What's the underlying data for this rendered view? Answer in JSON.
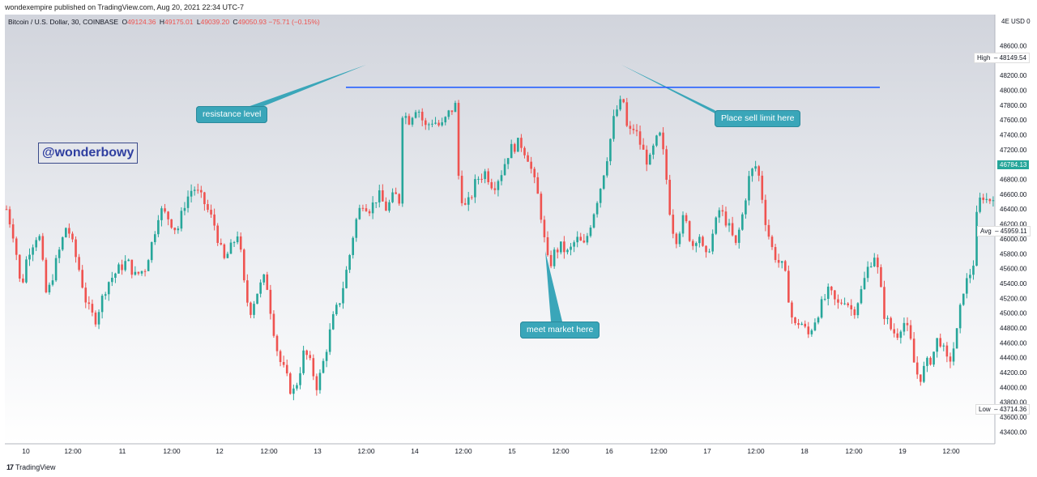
{
  "header": {
    "published_text": "wondexempire published on TradingView.com, Aug 20, 2021 22:34 UTC-7"
  },
  "legend": {
    "symbol": "Bitcoin / U.S. Dollar, 30, COINBASE",
    "open_label": "O",
    "open": "49124.36",
    "high_label": "H",
    "high": "49175.01",
    "low_label": "L",
    "low": "49039.20",
    "close_label": "C",
    "close": "49050.93",
    "change": "−75.71 (−0.15%)"
  },
  "annotations": {
    "resistance": "resistance level",
    "sell": "Place sell limit here",
    "meet": "meet market here",
    "watermark": "@wonderbowy"
  },
  "price_tags": {
    "currency": "USD",
    "top_clip": "4E",
    "top_clip2": "0",
    "high_label": "High",
    "high_value": "48149.54",
    "last_value": "46784.13",
    "avg_label": "Avg",
    "avg_value": "45959.11",
    "low_label": "Low",
    "low_value": "43714.36"
  },
  "footer": {
    "brand": "TradingView",
    "logo": "17"
  },
  "colors": {
    "up": "#26a69a",
    "down": "#ef5350",
    "line": "#2962ff",
    "callout": "#3aa6b9",
    "last_tag": "#26a69a"
  },
  "chart_data": {
    "type": "candlestick",
    "title": "Bitcoin / U.S. Dollar, 30, COINBASE",
    "ylim": [
      43240,
      49020
    ],
    "y_ticks": [
      43400,
      43600,
      43800,
      44000,
      44200,
      44400,
      44600,
      44800,
      45000,
      45200,
      45400,
      45600,
      45800,
      46000,
      46200,
      46400,
      46600,
      46800,
      47000,
      47200,
      47400,
      47600,
      47800,
      48000,
      48200,
      48400,
      48600
    ],
    "x_ticks": [
      "10",
      "12:00",
      "11",
      "12:00",
      "12",
      "12:00",
      "13",
      "12:00",
      "14",
      "12:00",
      "15",
      "12:00",
      "16",
      "12:00",
      "17",
      "12:00",
      "18",
      "12:00",
      "19",
      "12:00"
    ],
    "resistance_line": 48040,
    "close_path": [
      {
        "x": 0,
        "y": 46400
      },
      {
        "x": 10,
        "y": 46000
      },
      {
        "x": 18,
        "y": 45300
      },
      {
        "x": 26,
        "y": 45800
      },
      {
        "x": 40,
        "y": 46100
      },
      {
        "x": 50,
        "y": 45200
      },
      {
        "x": 62,
        "y": 45700
      },
      {
        "x": 75,
        "y": 46200
      },
      {
        "x": 90,
        "y": 45600
      },
      {
        "x": 100,
        "y": 45100
      },
      {
        "x": 110,
        "y": 44900
      },
      {
        "x": 125,
        "y": 45400
      },
      {
        "x": 140,
        "y": 45600
      },
      {
        "x": 150,
        "y": 45700
      },
      {
        "x": 160,
        "y": 45500
      },
      {
        "x": 172,
        "y": 45600
      },
      {
        "x": 182,
        "y": 46000
      },
      {
        "x": 190,
        "y": 46400
      },
      {
        "x": 200,
        "y": 46300
      },
      {
        "x": 212,
        "y": 46100
      },
      {
        "x": 222,
        "y": 46500
      },
      {
        "x": 232,
        "y": 46700
      },
      {
        "x": 245,
        "y": 46500
      },
      {
        "x": 258,
        "y": 46200
      },
      {
        "x": 270,
        "y": 45700
      },
      {
        "x": 280,
        "y": 45900
      },
      {
        "x": 288,
        "y": 46100
      },
      {
        "x": 295,
        "y": 45400
      },
      {
        "x": 302,
        "y": 45000
      },
      {
        "x": 312,
        "y": 45300
      },
      {
        "x": 322,
        "y": 45500
      },
      {
        "x": 330,
        "y": 44900
      },
      {
        "x": 338,
        "y": 44400
      },
      {
        "x": 346,
        "y": 44200
      },
      {
        "x": 355,
        "y": 43900
      },
      {
        "x": 362,
        "y": 44100
      },
      {
        "x": 370,
        "y": 44500
      },
      {
        "x": 378,
        "y": 44300
      },
      {
        "x": 386,
        "y": 44000
      },
      {
        "x": 395,
        "y": 44400
      },
      {
        "x": 405,
        "y": 44900
      },
      {
        "x": 415,
        "y": 45200
      },
      {
        "x": 425,
        "y": 45700
      },
      {
        "x": 433,
        "y": 46200
      },
      {
        "x": 442,
        "y": 46500
      },
      {
        "x": 452,
        "y": 46400
      },
      {
        "x": 462,
        "y": 46600
      },
      {
        "x": 472,
        "y": 46400
      },
      {
        "x": 482,
        "y": 46600
      },
      {
        "x": 489,
        "y": 46500
      },
      {
        "x": 492,
        "y": 47700
      },
      {
        "x": 500,
        "y": 47600
      },
      {
        "x": 510,
        "y": 47800
      },
      {
        "x": 520,
        "y": 47500
      },
      {
        "x": 530,
        "y": 47600
      },
      {
        "x": 540,
        "y": 47500
      },
      {
        "x": 550,
        "y": 47700
      },
      {
        "x": 558,
        "y": 47800
      },
      {
        "x": 561,
        "y": 46900
      },
      {
        "x": 568,
        "y": 46400
      },
      {
        "x": 575,
        "y": 46500
      },
      {
        "x": 584,
        "y": 46800
      },
      {
        "x": 595,
        "y": 46900
      },
      {
        "x": 605,
        "y": 46700
      },
      {
        "x": 615,
        "y": 46900
      },
      {
        "x": 625,
        "y": 47200
      },
      {
        "x": 638,
        "y": 47300
      },
      {
        "x": 648,
        "y": 47100
      },
      {
        "x": 655,
        "y": 46800
      },
      {
        "x": 662,
        "y": 46500
      },
      {
        "x": 668,
        "y": 46000
      },
      {
        "x": 674,
        "y": 45600
      },
      {
        "x": 680,
        "y": 45800
      },
      {
        "x": 688,
        "y": 45900
      },
      {
        "x": 698,
        "y": 45800
      },
      {
        "x": 708,
        "y": 46000
      },
      {
        "x": 718,
        "y": 45900
      },
      {
        "x": 728,
        "y": 46300
      },
      {
        "x": 738,
        "y": 46700
      },
      {
        "x": 748,
        "y": 47200
      },
      {
        "x": 756,
        "y": 47700
      },
      {
        "x": 762,
        "y": 47800
      },
      {
        "x": 766,
        "y": 47900
      },
      {
        "x": 772,
        "y": 47400
      },
      {
        "x": 780,
        "y": 47500
      },
      {
        "x": 790,
        "y": 47200
      },
      {
        "x": 798,
        "y": 47000
      },
      {
        "x": 806,
        "y": 47300
      },
      {
        "x": 813,
        "y": 47400
      },
      {
        "x": 820,
        "y": 46800
      },
      {
        "x": 826,
        "y": 46200
      },
      {
        "x": 832,
        "y": 46000
      },
      {
        "x": 842,
        "y": 46300
      },
      {
        "x": 852,
        "y": 45900
      },
      {
        "x": 860,
        "y": 46100
      },
      {
        "x": 868,
        "y": 45700
      },
      {
        "x": 876,
        "y": 46000
      },
      {
        "x": 886,
        "y": 46400
      },
      {
        "x": 896,
        "y": 46200
      },
      {
        "x": 906,
        "y": 45900
      },
      {
        "x": 914,
        "y": 46300
      },
      {
        "x": 922,
        "y": 46800
      },
      {
        "x": 930,
        "y": 47000
      },
      {
        "x": 936,
        "y": 46800
      },
      {
        "x": 942,
        "y": 46300
      },
      {
        "x": 950,
        "y": 45900
      },
      {
        "x": 958,
        "y": 45700
      },
      {
        "x": 966,
        "y": 45600
      },
      {
        "x": 972,
        "y": 45200
      },
      {
        "x": 978,
        "y": 44800
      },
      {
        "x": 986,
        "y": 44900
      },
      {
        "x": 996,
        "y": 44700
      },
      {
        "x": 1004,
        "y": 44900
      },
      {
        "x": 1012,
        "y": 45100
      },
      {
        "x": 1022,
        "y": 45300
      },
      {
        "x": 1032,
        "y": 45100
      },
      {
        "x": 1042,
        "y": 45200
      },
      {
        "x": 1052,
        "y": 45000
      },
      {
        "x": 1062,
        "y": 45300
      },
      {
        "x": 1070,
        "y": 45600
      },
      {
        "x": 1078,
        "y": 45800
      },
      {
        "x": 1084,
        "y": 45500
      },
      {
        "x": 1090,
        "y": 45000
      },
      {
        "x": 1098,
        "y": 44800
      },
      {
        "x": 1106,
        "y": 44700
      },
      {
        "x": 1114,
        "y": 44900
      },
      {
        "x": 1122,
        "y": 44700
      },
      {
        "x": 1128,
        "y": 44300
      },
      {
        "x": 1134,
        "y": 44100
      },
      {
        "x": 1142,
        "y": 44300
      },
      {
        "x": 1150,
        "y": 44400
      },
      {
        "x": 1158,
        "y": 44700
      },
      {
        "x": 1164,
        "y": 44500
      },
      {
        "x": 1170,
        "y": 44300
      },
      {
        "x": 1176,
        "y": 44500
      },
      {
        "x": 1182,
        "y": 44800
      },
      {
        "x": 1188,
        "y": 45300
      },
      {
        "x": 1196,
        "y": 45500
      },
      {
        "x": 1202,
        "y": 45700
      },
      {
        "x": 1206,
        "y": 46400
      },
      {
        "x": 1212,
        "y": 46600
      },
      {
        "x": 1220,
        "y": 46500
      },
      {
        "x": 1226,
        "y": 46600
      }
    ]
  }
}
